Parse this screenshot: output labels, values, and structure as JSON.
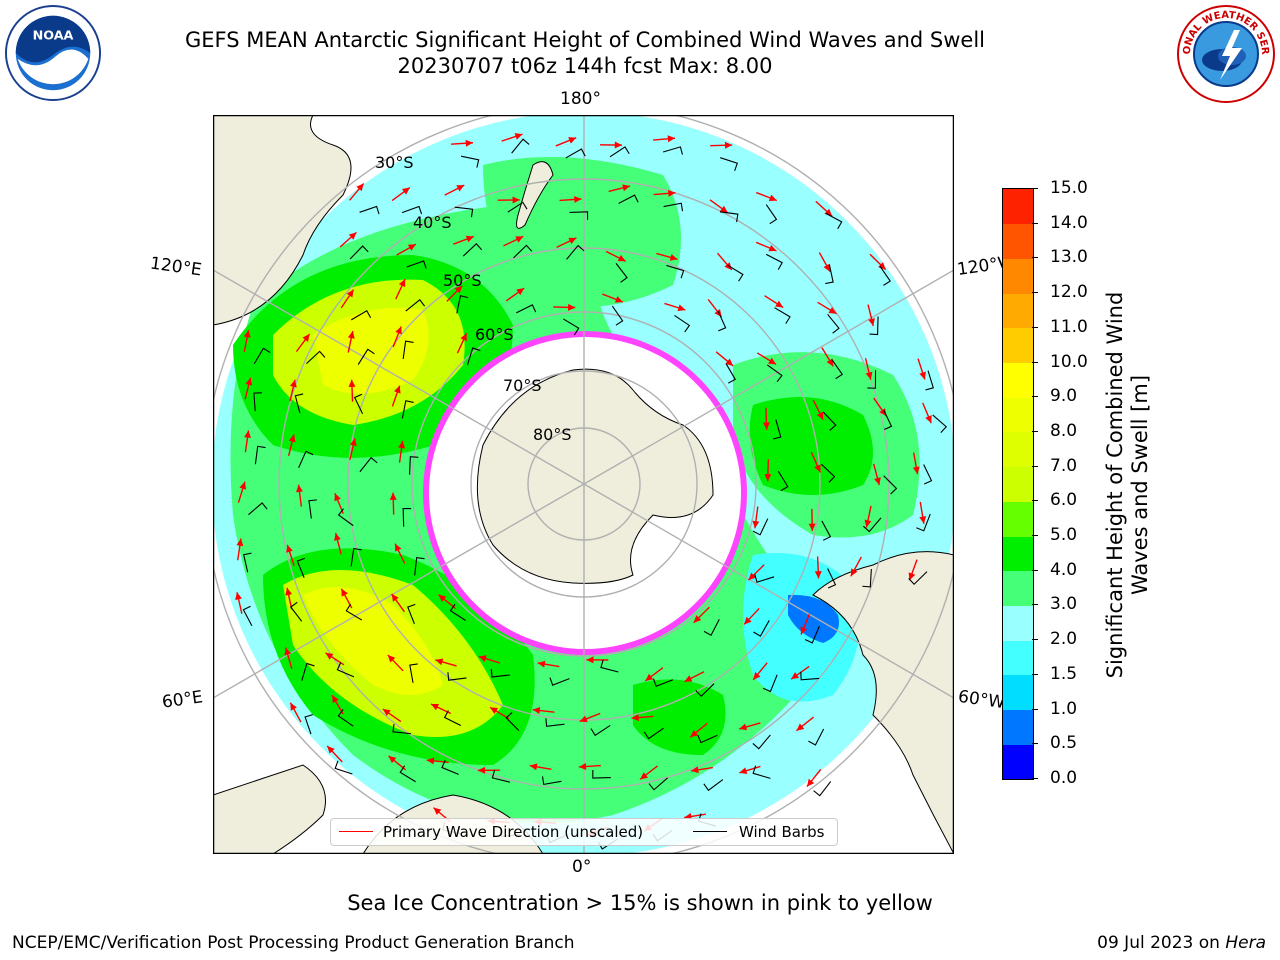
{
  "header": {
    "title_line_1": "GEFS MEAN Antarctic Significant Height of Combined Wind Waves and Swell",
    "title_line_2": "20230707 t06z 144h fcst   Max: 8.00"
  },
  "logos": {
    "left": {
      "text": "NOAA",
      "icon": "noaa-logo"
    },
    "right": {
      "text": "NATIONAL WEATHER SERVICE",
      "icon": "nws-logo"
    }
  },
  "map": {
    "projection": "south-polar-stereographic",
    "longitude_labels": {
      "top": "180°",
      "bottom": "0°",
      "upper_left": "120°E",
      "lower_left": "60°E",
      "upper_right": "120°W",
      "lower_right": "60°W"
    },
    "latitude_labels": [
      "30°S",
      "40°S",
      "50°S",
      "60°S",
      "70°S",
      "80°S"
    ],
    "legend": {
      "wave_direction": "Primary Wave Direction (unscaled)",
      "wind_barbs": "Wind Barbs",
      "wave_direction_color": "#ff0000",
      "wind_barb_color": "#000000"
    }
  },
  "colorbar": {
    "title": "Significant Height of Combined Wind Waves and Swell [m]",
    "ticks": [
      "0.0",
      "0.5",
      "1.0",
      "1.5",
      "2.0",
      "3.0",
      "4.0",
      "5.0",
      "6.0",
      "7.0",
      "8.0",
      "9.0",
      "10.0",
      "11.0",
      "12.0",
      "13.0",
      "14.0",
      "15.0"
    ],
    "colors": [
      "#0000ff",
      "#0077ff",
      "#00ddff",
      "#44ffff",
      "#99ffff",
      "#44ff77",
      "#00ee00",
      "#66ff00",
      "#ccff00",
      "#ddff00",
      "#eeff00",
      "#ffff00",
      "#ffcc00",
      "#ffaa00",
      "#ff8800",
      "#ff5500",
      "#ff2200"
    ]
  },
  "footer": {
    "note": "Sea Ice Concentration > 15% is shown in pink to yellow",
    "credit_left": "NCEP/EMC/Verification Post Processing Product Generation Branch",
    "credit_right_date": "09 Jul 2023 on",
    "credit_right_host": "Hera"
  }
}
